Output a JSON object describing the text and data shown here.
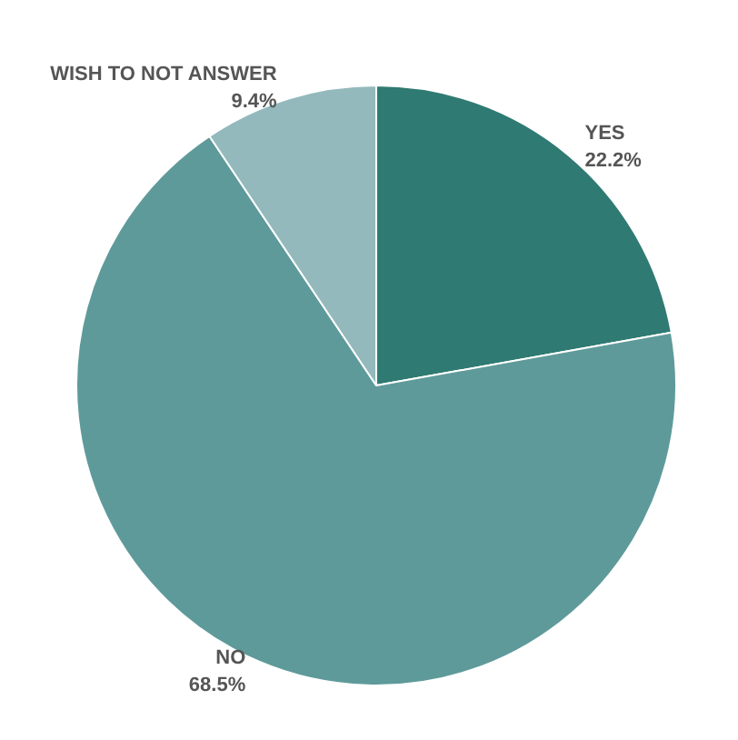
{
  "chart_data": {
    "type": "pie",
    "categories": [
      "YES",
      "NO",
      "WISH TO NOT ANSWER"
    ],
    "values": [
      22.2,
      68.5,
      9.4
    ],
    "colors": [
      "#2f7a72",
      "#5f9a9a",
      "#93b9bd"
    ],
    "value_labels": [
      "22.2%",
      "68.5%",
      "9.4%"
    ]
  }
}
